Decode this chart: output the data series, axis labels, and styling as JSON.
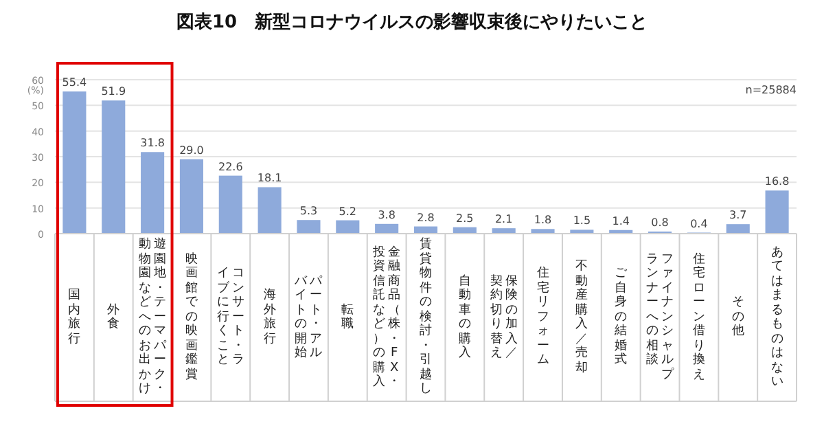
{
  "chart_data": {
    "type": "bar",
    "title": "図表10　新型コロナウイルスの影響収束後にやりたいこと",
    "ylabel": "(%)",
    "categories": [
      "国内旅行",
      "外食",
      "遊園地・テーマパーク・動物園などへのお出かけ",
      "映画館での映画鑑賞",
      "コンサート・ライブに行くこと",
      "海外旅行",
      "パート・アルバイトの開始",
      "転職",
      "金融商品（株・FX・投資信託など）の購入",
      "賃貸物件の検討・引越し",
      "自動車の購入",
      "保険の加入／契約切り替え",
      "住宅リフォーム",
      "不動産購入／売却",
      "ご自身の結婚式",
      "ファイナンシャルプランナーへの相談",
      "住宅ローン借り換え",
      "その他",
      "あてはまるものはない"
    ],
    "values": [
      55.4,
      51.9,
      31.8,
      29.0,
      22.6,
      18.1,
      5.3,
      5.2,
      3.8,
      2.8,
      2.5,
      2.1,
      1.8,
      1.5,
      1.4,
      0.8,
      0.4,
      3.7,
      16.8
    ],
    "value_labels": [
      "55.4",
      "51.9",
      "31.8",
      "29.0",
      "22.6",
      "18.1",
      "5.3",
      "5.2",
      "3.8",
      "2.8",
      "2.5",
      "2.1",
      "1.8",
      "1.5",
      "1.4",
      "0.8",
      "0.4",
      "3.7",
      "16.8"
    ],
    "color": "#8eaadb",
    "ylim": [
      0,
      60
    ],
    "yticks": [
      0,
      10,
      20,
      30,
      40,
      50,
      60
    ],
    "grid": "y",
    "annotations": [
      "n=25884"
    ]
  }
}
